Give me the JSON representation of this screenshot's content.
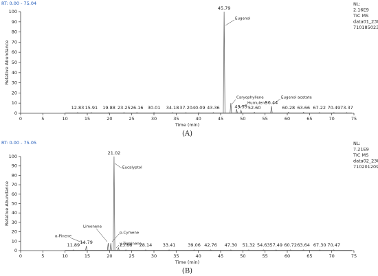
{
  "chart_data": [
    {
      "type": "chromatogram",
      "header": "RT: 0.00 - 75.04",
      "info": [
        "NL:",
        "2.16E9",
        "TIC  MS",
        "data01_230",
        "710185023"
      ],
      "xlabel": "Time (min)",
      "ylabel": "Relative Abundance",
      "caption": "(A)",
      "xlim": [
        0,
        75
      ],
      "ylim": [
        0,
        100
      ],
      "xticks": [
        0,
        5,
        10,
        15,
        20,
        25,
        30,
        35,
        40,
        45,
        50,
        55,
        60,
        65,
        70,
        75
      ],
      "yticks": [
        0,
        10,
        20,
        30,
        40,
        50,
        60,
        70,
        80,
        90,
        100
      ],
      "color": "#555555",
      "peaks": {
        "x": [
          12.83,
          15.91,
          19.88,
          23.25,
          26.16,
          30.01,
          34.18,
          37.2,
          40.09,
          43.36,
          45.79,
          47.3,
          48.6,
          49.59,
          52.6,
          56.44,
          60.28,
          63.66,
          67.22,
          70.49,
          73.37
        ],
        "values": [
          0.8,
          0.8,
          0.8,
          0.8,
          0.8,
          0.8,
          0.8,
          0.8,
          0.8,
          0.8,
          100,
          10,
          4,
          3,
          1,
          7,
          1,
          1,
          0.8,
          0.8,
          0.8
        ],
        "labels": [
          "12.83",
          "15.91",
          "19.88",
          "23.25",
          "26.16",
          "30.01",
          "34.18",
          "37.20",
          "40.09",
          "43.36",
          "45.79",
          null,
          null,
          "49.59",
          "52.60",
          "56.44",
          "60.28",
          "63.66",
          "67.22",
          "70.49",
          "73.37"
        ]
      },
      "compounds": [
        "Eugenol",
        "Caryophyllene",
        "Humulene",
        "Eugenol acetate"
      ]
    },
    {
      "type": "chromatogram",
      "header": "RT: 0.00 - 75.05",
      "info": [
        "NL:",
        "7.21E9",
        "TIC  MS",
        "data02_230",
        "710201209"
      ],
      "xlabel": "Time (min)",
      "ylabel": "Relative Abundance",
      "caption": "(B)",
      "xlim": [
        0,
        75
      ],
      "ylim": [
        0,
        100
      ],
      "xticks": [
        0,
        5,
        10,
        15,
        20,
        25,
        30,
        35,
        40,
        45,
        50,
        55,
        60,
        65,
        70,
        75
      ],
      "yticks": [
        0,
        10,
        20,
        30,
        40,
        50,
        60,
        70,
        80,
        90,
        100
      ],
      "color": "#555555",
      "peaks": {
        "x": [
          11.89,
          14.79,
          19.7,
          20.3,
          21.02,
          22.0,
          23.68,
          28.14,
          33.41,
          39.06,
          42.76,
          47.3,
          51.32,
          54.63,
          57.49,
          60.72,
          63.64,
          67.3,
          70.47
        ],
        "values": [
          0.8,
          5,
          8,
          8,
          100,
          3,
          0.8,
          0.8,
          0.8,
          0.8,
          0.8,
          0.8,
          0.8,
          0.8,
          0.8,
          0.8,
          0.8,
          0.8,
          0.8
        ],
        "labels": [
          "11.89",
          "14.79",
          null,
          null,
          "21.02",
          null,
          "23.68",
          "28.14",
          "33.41",
          "39.06",
          "42.76",
          "47.30",
          "51.32",
          "54.63",
          "57.49",
          "60.72",
          "63.64",
          "67.30",
          "70.47"
        ]
      },
      "compounds": [
        "α-Pinene",
        "Limonene",
        "Eucalyptol",
        "p-Cymene",
        "γ-Terpinene"
      ]
    }
  ]
}
